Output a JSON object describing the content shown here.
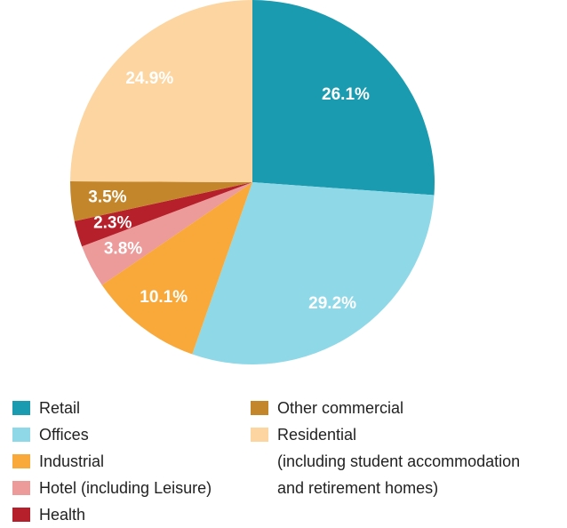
{
  "chart_data": {
    "type": "pie",
    "categories": [
      "Retail",
      "Offices",
      "Industrial",
      "Hotel (including Leisure)",
      "Health",
      "Other commercial",
      "Residential\n(including student accommodation\nand retirement homes)"
    ],
    "values": [
      26.1,
      29.2,
      10.1,
      3.8,
      2.3,
      3.5,
      24.9
    ],
    "value_labels": [
      "26.1%",
      "29.2%",
      "10.1%",
      "3.8%",
      "2.3%",
      "3.5%",
      "24.9%"
    ],
    "colors": [
      "#1a9bb0",
      "#8fd8e8",
      "#f9a93a",
      "#ec9a9a",
      "#b5202a",
      "#c4862a",
      "#fdd5a0"
    ]
  }
}
